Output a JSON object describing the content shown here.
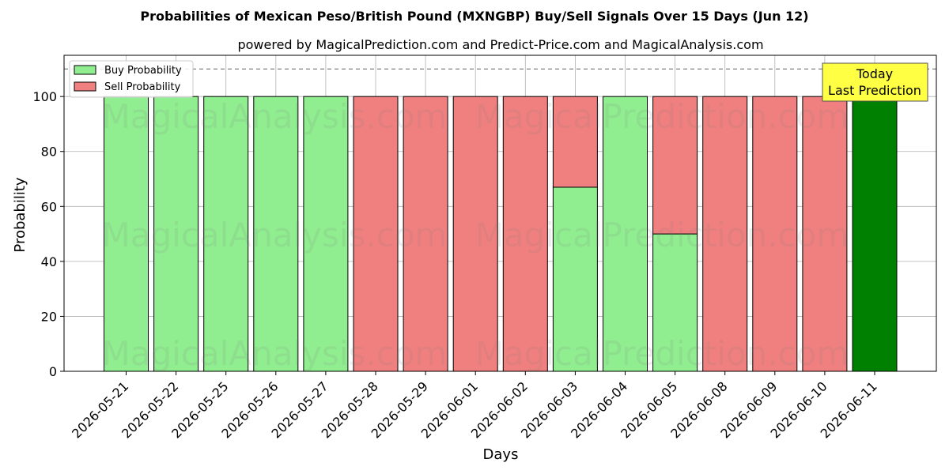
{
  "chart_data": {
    "type": "bar",
    "stacked": true,
    "title": "Probabilities of Mexican Peso/British Pound (MXNGBP) Buy/Sell Signals Over 15 Days (Jun 12)",
    "subtitle": "powered by MagicalPrediction.com and Predict-Price.com and MagicalAnalysis.com",
    "xlabel": "Days",
    "ylabel": "Probability",
    "ylim": [
      0,
      115
    ],
    "yticks": [
      0,
      20,
      40,
      60,
      80,
      100
    ],
    "grid": true,
    "legend_position": "top-left",
    "reference_line": {
      "y": 110,
      "style": "dashed"
    },
    "categories": [
      "2026-05-21",
      "2026-05-22",
      "2026-05-25",
      "2026-05-26",
      "2026-05-27",
      "2026-05-28",
      "2026-05-29",
      "2026-06-01",
      "2026-06-02",
      "2026-06-03",
      "2026-06-04",
      "2026-06-05",
      "2026-06-08",
      "2026-06-09",
      "2026-06-10",
      "2026-06-11"
    ],
    "series": [
      {
        "name": "Buy Probability",
        "color": "#90ee90",
        "values": [
          100,
          100,
          100,
          100,
          100,
          0,
          0,
          0,
          0,
          67,
          100,
          50,
          0,
          0,
          0,
          100
        ]
      },
      {
        "name": "Sell Probability",
        "color": "#f08080",
        "values": [
          0,
          0,
          0,
          0,
          0,
          100,
          100,
          100,
          100,
          33,
          0,
          50,
          100,
          100,
          100,
          0
        ]
      }
    ],
    "highlight": {
      "index": 15,
      "color": "#008000"
    },
    "annotation": {
      "lines": [
        "Today",
        "Last Prediction"
      ],
      "background": "#ffff44"
    },
    "watermarks": [
      "MagicalAnalysis.com",
      "MagicalPrediction.com"
    ]
  }
}
